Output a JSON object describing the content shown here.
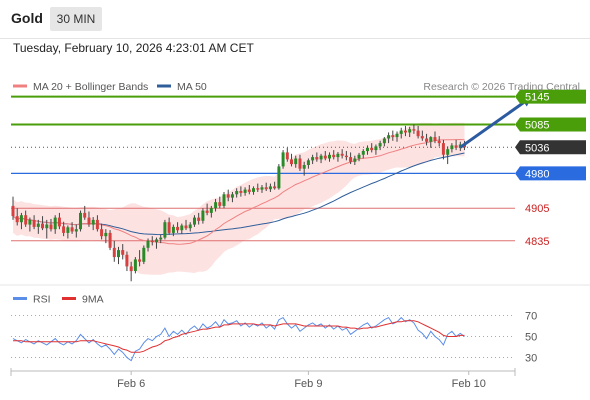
{
  "header": {
    "title": "Gold",
    "timeframe": "30 MIN",
    "datetime": "Tuesday, February 10, 2026 4:23:01 AM CET"
  },
  "colors": {
    "bull": "#2a8a2a",
    "bear": "#d64040",
    "ma20": "#f08080",
    "bands": "#fcd8d8",
    "ma50": "#2f5e9a",
    "resistance": "#4a9e0a",
    "pivot": "#2b6be0",
    "support": "#e07070",
    "support_text": "#cc2222",
    "current": "#333333",
    "arrow": "#2c5aa0",
    "rsi": "#5b8ee8",
    "rsi_ma": "#e03030"
  },
  "chart_data": [
    {
      "type": "candlestick",
      "legend": [
        {
          "name": "MA 20 + Bollinger Bands",
          "color": "#f08080"
        },
        {
          "name": "MA 50",
          "color": "#2f5e9a"
        }
      ],
      "watermark": "Research © 2026 Trading Central",
      "ylim": [
        4740,
        5185
      ],
      "x_ticks": [
        {
          "index": 28,
          "label": "Feb 6"
        },
        {
          "index": 70,
          "label": "Feb 9"
        },
        {
          "index": 108,
          "label": "Feb 10"
        }
      ],
      "candles_ohlc": [
        [
          4910,
          4930,
          4880,
          4888
        ],
        [
          4888,
          4905,
          4868,
          4875
        ],
        [
          4875,
          4895,
          4860,
          4890
        ],
        [
          4890,
          4900,
          4865,
          4870
        ],
        [
          4870,
          4885,
          4855,
          4880
        ],
        [
          4880,
          4890,
          4860,
          4865
        ],
        [
          4865,
          4880,
          4850,
          4872
        ],
        [
          4872,
          4888,
          4858,
          4862
        ],
        [
          4862,
          4880,
          4840,
          4870
        ],
        [
          4870,
          4882,
          4855,
          4860
        ],
        [
          4860,
          4890,
          4850,
          4885
        ],
        [
          4885,
          4895,
          4860,
          4866
        ],
        [
          4866,
          4876,
          4845,
          4852
        ],
        [
          4852,
          4868,
          4840,
          4864
        ],
        [
          4864,
          4875,
          4850,
          4855
        ],
        [
          4855,
          4870,
          4842,
          4860
        ],
        [
          4860,
          4900,
          4855,
          4895
        ],
        [
          4895,
          4910,
          4880,
          4885
        ],
        [
          4885,
          4898,
          4865,
          4870
        ],
        [
          4870,
          4886,
          4858,
          4880
        ],
        [
          4880,
          4890,
          4855,
          4860
        ],
        [
          4860,
          4872,
          4838,
          4845
        ],
        [
          4845,
          4860,
          4830,
          4852
        ],
        [
          4852,
          4858,
          4815,
          4820
        ],
        [
          4820,
          4835,
          4790,
          4800
        ],
        [
          4800,
          4822,
          4785,
          4815
        ],
        [
          4815,
          4828,
          4795,
          4805
        ],
        [
          4805,
          4812,
          4770,
          4780
        ],
        [
          4780,
          4790,
          4748,
          4770
        ],
        [
          4770,
          4800,
          4765,
          4795
        ],
        [
          4795,
          4815,
          4780,
          4790
        ],
        [
          4790,
          4825,
          4785,
          4820
        ],
        [
          4820,
          4840,
          4812,
          4835
        ],
        [
          4835,
          4845,
          4825,
          4832
        ],
        [
          4832,
          4842,
          4818,
          4838
        ],
        [
          4838,
          4848,
          4830,
          4842
        ],
        [
          4842,
          4880,
          4838,
          4875
        ],
        [
          4875,
          4885,
          4848,
          4852
        ],
        [
          4852,
          4870,
          4845,
          4865
        ],
        [
          4865,
          4875,
          4852,
          4858
        ],
        [
          4858,
          4872,
          4850,
          4868
        ],
        [
          4868,
          4880,
          4858,
          4862
        ],
        [
          4862,
          4875,
          4855,
          4870
        ],
        [
          4870,
          4890,
          4865,
          4885
        ],
        [
          4885,
          4895,
          4870,
          4878
        ],
        [
          4878,
          4905,
          4872,
          4900
        ],
        [
          4900,
          4915,
          4890,
          4895
        ],
        [
          4895,
          4910,
          4885,
          4905
        ],
        [
          4905,
          4925,
          4898,
          4918
        ],
        [
          4918,
          4930,
          4905,
          4910
        ],
        [
          4910,
          4940,
          4905,
          4935
        ],
        [
          4935,
          4945,
          4920,
          4928
        ],
        [
          4928,
          4940,
          4918,
          4935
        ],
        [
          4935,
          4948,
          4928,
          4942
        ],
        [
          4942,
          4952,
          4930,
          4938
        ],
        [
          4938,
          4950,
          4932,
          4945
        ],
        [
          4945,
          4955,
          4935,
          4940
        ],
        [
          4940,
          4952,
          4934,
          4948
        ],
        [
          4948,
          4958,
          4940,
          4945
        ],
        [
          4945,
          4955,
          4938,
          4950
        ],
        [
          4950,
          4960,
          4942,
          4946
        ],
        [
          4946,
          4958,
          4940,
          4952
        ],
        [
          4952,
          4962,
          4945,
          4948
        ],
        [
          4948,
          5000,
          4945,
          4995
        ],
        [
          4995,
          5030,
          4990,
          5025
        ],
        [
          5025,
          5035,
          5005,
          5010
        ],
        [
          5010,
          5022,
          4995,
          5000
        ],
        [
          5000,
          5018,
          4992,
          5012
        ],
        [
          5012,
          5020,
          4985,
          4990
        ],
        [
          4990,
          5005,
          4975,
          4998
        ],
        [
          4998,
          5012,
          4990,
          5008
        ],
        [
          5008,
          5020,
          5000,
          5015
        ],
        [
          5015,
          5025,
          5005,
          5010
        ],
        [
          5010,
          5022,
          5002,
          5018
        ],
        [
          5018,
          5028,
          5008,
          5012
        ],
        [
          5012,
          5025,
          5005,
          5020
        ],
        [
          5020,
          5030,
          5010,
          5015
        ],
        [
          5015,
          5026,
          5005,
          5022
        ],
        [
          5022,
          5032,
          5012,
          5018
        ],
        [
          5018,
          5028,
          5008,
          5015
        ],
        [
          5015,
          5025,
          5000,
          5005
        ],
        [
          5005,
          5018,
          4998,
          5012
        ],
        [
          5012,
          5024,
          5006,
          5020
        ],
        [
          5020,
          5032,
          5012,
          5028
        ],
        [
          5028,
          5040,
          5020,
          5035
        ],
        [
          5035,
          5045,
          5025,
          5030
        ],
        [
          5030,
          5042,
          5020,
          5038
        ],
        [
          5038,
          5050,
          5030,
          5045
        ],
        [
          5045,
          5058,
          5038,
          5055
        ],
        [
          5055,
          5068,
          5045,
          5062
        ],
        [
          5062,
          5072,
          5050,
          5058
        ],
        [
          5058,
          5070,
          5048,
          5065
        ],
        [
          5065,
          5078,
          5055,
          5072
        ],
        [
          5072,
          5082,
          5060,
          5068
        ],
        [
          5068,
          5080,
          5058,
          5075
        ],
        [
          5075,
          5085,
          5065,
          5072
        ],
        [
          5072,
          5082,
          5055,
          5060
        ],
        [
          5060,
          5072,
          5050,
          5055
        ],
        [
          5055,
          5065,
          5040,
          5048
        ],
        [
          5048,
          5060,
          5035,
          5058
        ],
        [
          5058,
          5070,
          5045,
          5050
        ],
        [
          5050,
          5060,
          5038,
          5045
        ],
        [
          5045,
          5052,
          5010,
          5020
        ],
        [
          5020,
          5038,
          5000,
          5032
        ],
        [
          5032,
          5045,
          5025,
          5040
        ],
        [
          5040,
          5052,
          5030,
          5035
        ],
        [
          5035,
          5048,
          5028,
          5042
        ],
        [
          5042,
          5050,
          5030,
          5036
        ]
      ],
      "horizontal_levels": [
        {
          "value": 5145,
          "label": "5145",
          "type": "resistance"
        },
        {
          "value": 5085,
          "label": "5085",
          "type": "resistance"
        },
        {
          "value": 5036,
          "label": "5036",
          "type": "current"
        },
        {
          "value": 4980,
          "label": "4980",
          "type": "pivot"
        },
        {
          "value": 4905,
          "label": "4905",
          "type": "support"
        },
        {
          "value": 4835,
          "label": "4835",
          "type": "support"
        }
      ],
      "projection_arrow": {
        "from": {
          "index": 106,
          "value": 5036
        },
        "to": {
          "index": 123,
          "value": 5145
        }
      }
    },
    {
      "type": "line",
      "legend": [
        {
          "name": "RSI",
          "color": "#5b8ee8"
        },
        {
          "name": "9MA",
          "color": "#e03030"
        }
      ],
      "ylim": [
        20,
        80
      ],
      "y_ticks": [
        70,
        50,
        30
      ],
      "series": [
        {
          "name": "RSI",
          "values": [
            48,
            46,
            44,
            47,
            45,
            43,
            46,
            44,
            42,
            45,
            48,
            44,
            42,
            45,
            43,
            46,
            52,
            48,
            44,
            47,
            43,
            40,
            42,
            38,
            33,
            38,
            35,
            30,
            27,
            36,
            38,
            44,
            48,
            46,
            50,
            52,
            58,
            50,
            55,
            52,
            56,
            52,
            57,
            60,
            56,
            62,
            58,
            60,
            64,
            59,
            66,
            62,
            63,
            65,
            60,
            63,
            59,
            62,
            60,
            63,
            58,
            61,
            57,
            66,
            68,
            62,
            58,
            61,
            55,
            58,
            61,
            63,
            60,
            62,
            58,
            61,
            57,
            60,
            56,
            58,
            52,
            55,
            58,
            61,
            63,
            58,
            60,
            63,
            66,
            68,
            62,
            64,
            68,
            64,
            66,
            63,
            56,
            53,
            48,
            55,
            50,
            47,
            42,
            52,
            55,
            50,
            53,
            50
          ]
        },
        {
          "name": "9MA",
          "values": [
            46,
            46,
            46,
            45,
            45,
            45,
            45,
            45,
            45,
            45,
            45,
            45,
            45,
            45,
            45,
            45,
            46,
            46,
            46,
            46,
            45,
            44,
            43,
            42,
            41,
            40,
            38,
            37,
            35,
            35,
            35,
            36,
            38,
            40,
            41,
            43,
            46,
            47,
            49,
            50,
            52,
            53,
            54,
            55,
            56,
            57,
            57,
            58,
            59,
            59,
            61,
            61,
            62,
            62,
            62,
            62,
            62,
            62,
            61,
            61,
            61,
            61,
            60,
            61,
            62,
            62,
            62,
            62,
            61,
            60,
            60,
            60,
            60,
            60,
            60,
            60,
            60,
            60,
            59,
            59,
            58,
            58,
            57,
            58,
            58,
            59,
            59,
            60,
            61,
            62,
            63,
            64,
            64,
            65,
            65,
            65,
            64,
            62,
            60,
            58,
            56,
            54,
            51,
            50,
            50,
            50,
            51,
            51
          ]
        }
      ]
    }
  ]
}
